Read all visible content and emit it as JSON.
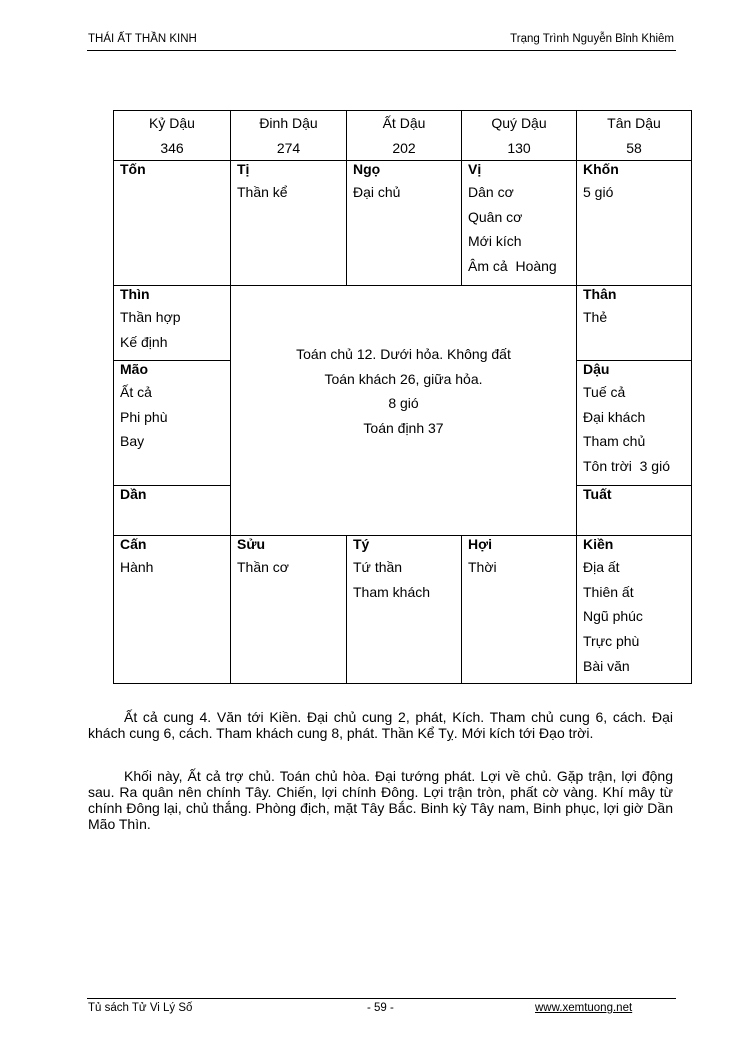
{
  "header": {
    "left": "THÁI ẤT THẦN KINH",
    "right": "Trạng Trình Nguyễn Bỉnh Khiêm"
  },
  "table": {
    "columns": [
      {
        "name": "Kỷ Dậu",
        "value": "346"
      },
      {
        "name": "Đinh Dậu",
        "value": "274"
      },
      {
        "name": "Ất Dậu",
        "value": "202"
      },
      {
        "name": "Quý Dậu",
        "value": "130"
      },
      {
        "name": "Tân Dậu",
        "value": "58"
      }
    ],
    "cells": [
      {
        "title": "Tốn",
        "lines": []
      },
      {
        "title": "Tị",
        "lines": [
          "Thần kể"
        ]
      },
      {
        "title": "Ngọ",
        "lines": [
          "Đại chủ"
        ]
      },
      {
        "title": "Vị",
        "lines": [
          "Dân cơ",
          "Quân cơ",
          "Mới kích",
          "Âm cả  Hoàng"
        ]
      },
      {
        "title": "Khốn",
        "lines": [
          "5 gió"
        ]
      },
      {
        "title": "Thìn",
        "lines": [
          "Thần hợp",
          "Kế định"
        ]
      },
      {
        "title": "Thân",
        "lines": [
          "Thẻ"
        ]
      },
      {
        "title": "Mão",
        "lines": [
          "Ất cả",
          "Phi phù",
          "Bay"
        ]
      },
      {
        "title": "Dậu",
        "lines": [
          "Tuế cả",
          "Đại khách",
          "Tham chủ",
          "Tôn trời  3 gió"
        ]
      },
      {
        "title": "Dần",
        "lines": []
      },
      {
        "title": "Tuất",
        "lines": []
      },
      {
        "title": "Cấn",
        "lines": [
          "Hành"
        ]
      },
      {
        "title": "Sửu",
        "lines": [
          "Thần cơ"
        ]
      },
      {
        "title": "Tý",
        "lines": [
          "Tứ thần",
          "Tham khách"
        ]
      },
      {
        "title": "Hợi",
        "lines": [
          "Thời"
        ]
      },
      {
        "title": "Kiền",
        "lines": [
          "Địa ất",
          "Thiên ất",
          "Ngũ phúc",
          "Trực phù",
          "Bài văn"
        ]
      }
    ],
    "center": [
      "Toán chủ 12. Dưới hỏa. Không đất",
      "Toán khách 26, giữa hỏa.",
      "8 gió",
      "Toán định 37"
    ]
  },
  "paragraphs": [
    "Ất cả cung 4. Văn tới Kiền. Đại chủ cung 2, phát, Kích. Tham chủ cung 6, cách. Đại khách cung 6, cách. Tham khách cung 8, phát. Thần Kể Tỵ. Mới kích tới Đạo trời.",
    "Khối này, Ất cả trợ chủ. Toán chủ hòa. Đại tướng phát. Lợi về chủ. Gặp trận, lợi động sau. Ra quân nên chính Tây. Chiến, lợi chính Đông. Lợi trận tròn, phất cờ vàng. Khí mây từ chính Đông lại, chủ thắng. Phòng địch, mặt Tây Bắc. Binh kỳ Tây nam, Binh phục, lợi giờ Dần Mão Thìn."
  ],
  "footer": {
    "left": "Tủ sách Tử Vi Lý Số",
    "center": "- 59 -",
    "right": "www.xemtuong.net"
  }
}
